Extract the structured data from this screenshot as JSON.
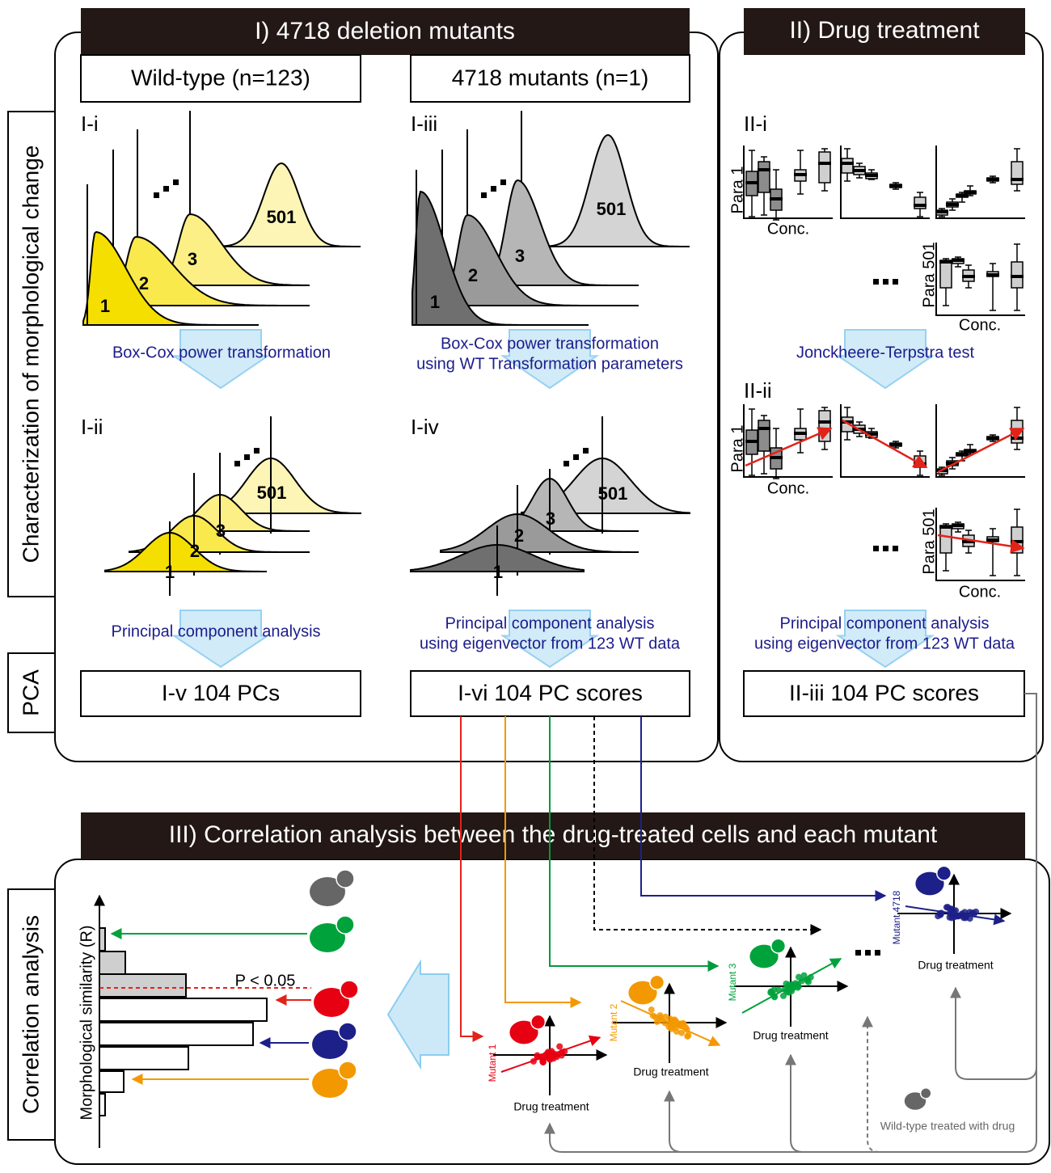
{
  "side_labels": {
    "characterization": "Characterization of morphological change",
    "pca": "PCA",
    "correlation": "Correlation analysis"
  },
  "section_i": {
    "title": "I) 4718 deletion mutants",
    "wild_type": "Wild-type (n=123)",
    "mutants": "4718 mutants (n=1)",
    "panels": [
      "I-i",
      "I-ii",
      "I-iii",
      "I-iv"
    ],
    "distribution_labels": [
      "1",
      "2",
      "3",
      "501"
    ],
    "wt_transform": "Box-Cox power transformation",
    "mut_transform": [
      "Box-Cox power transformation",
      "using WT Transformation parameters"
    ],
    "wt_pca": "Principal component analysis",
    "mut_pca": [
      "Principal component analysis",
      "using eigenvector from 123 WT data"
    ],
    "wt_result": "I-v 104 PCs",
    "mut_result": "I-vi 104 PC scores"
  },
  "section_ii": {
    "title": "II) Drug treatment",
    "panels": [
      "II-i",
      "II-ii"
    ],
    "para_first": "Para 1",
    "para_last": "Para 501",
    "conc": "Conc.",
    "test": "Jonckheere-Terpstra test",
    "pca": [
      "Principal component analysis",
      "using eigenvector from 123 WT data"
    ],
    "result": "II-iii 104 PC scores"
  },
  "section_iii": {
    "title": "III) Correlation analysis between the drug-treated cells and each mutant",
    "y_axis": "Morphological similarity (R)",
    "threshold": "P < 0.05",
    "mutants": [
      "Mutant 1",
      "Mutant 2",
      "Mutant 3",
      "Mutant 4718"
    ],
    "x_axis": "Drug treatment",
    "reference": "Wild-type treated with drug"
  }
}
